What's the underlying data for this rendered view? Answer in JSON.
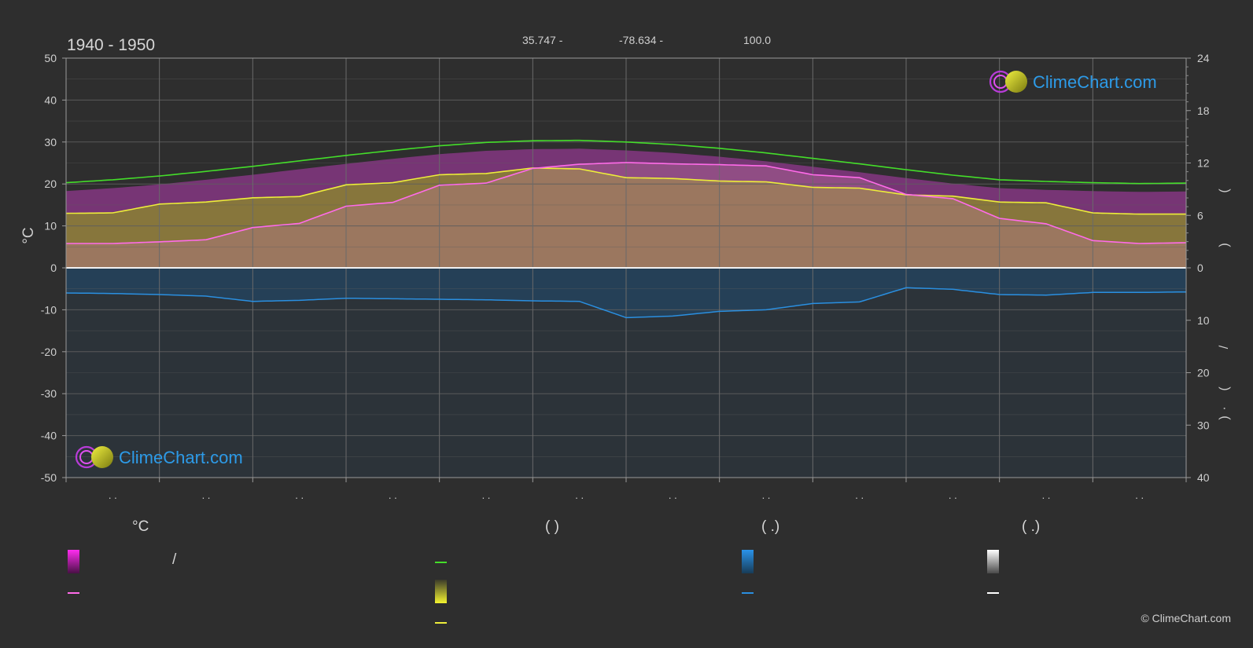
{
  "header": {
    "title": "1940 - 1950",
    "lat": "35.747 -",
    "lon": "-78.634 -",
    "elev": "100.0"
  },
  "brand": {
    "logo_text": "ClimeChart.com",
    "copyright": "© ClimeChart.com"
  },
  "colors": {
    "background": "#2e2e2e",
    "max_temp_line": "#44dd2a",
    "daylight_line": "#eded3a",
    "mean_temp_line": "#ff6be9",
    "precip_line": "#2a8fe0",
    "grid": "#5e5e5e",
    "logo_text": "#2d9be8"
  },
  "legend": {
    "col1_header": "°C",
    "col2_header": "(          )",
    "col3_header": "(   .)",
    "col4_header": "(   .)",
    "slash": "/"
  },
  "chart_data": {
    "type": "area",
    "xlabel": "",
    "ylabel": "°C",
    "ylim": [
      -50,
      50
    ],
    "y_ticks": [
      50,
      40,
      30,
      20,
      10,
      0,
      -10,
      -20,
      -30,
      -40,
      -50
    ],
    "y2_ticks_top": [
      24,
      18,
      12,
      6,
      0
    ],
    "y2_ticks_bottom": [
      10,
      20,
      30,
      40
    ],
    "y2_top_lim": [
      0,
      24
    ],
    "y2_bottom_lim": [
      0,
      40
    ],
    "y2_label_glyphs": [
      "(",
      ")",
      "/",
      "(",
      "·",
      ")"
    ],
    "month_tick_label": ". .",
    "grid": true,
    "x": [
      0,
      0.5,
      1,
      1.5,
      2,
      2.5,
      3,
      3.5,
      4,
      4.5,
      5,
      5.5,
      6,
      6.5,
      7,
      7.5,
      8,
      8.5,
      9,
      9.5,
      10,
      10.5,
      11,
      11.5,
      12
    ],
    "series": [
      {
        "key": "max_temp",
        "values": [
          20.3,
          21.0,
          21.9,
          23.0,
          24.2,
          25.5,
          26.8,
          28.0,
          29.1,
          29.9,
          30.3,
          30.4,
          30.0,
          29.4,
          28.5,
          27.4,
          26.1,
          24.8,
          23.4,
          22.1,
          21.0,
          20.6,
          20.3,
          20.1,
          20.2
        ]
      },
      {
        "key": "daylight",
        "values": [
          13.0,
          13.1,
          15.2,
          15.7,
          16.7,
          17.0,
          19.8,
          20.3,
          22.2,
          22.5,
          23.8,
          23.6,
          21.5,
          21.3,
          20.7,
          20.5,
          19.2,
          19.0,
          17.4,
          17.1,
          15.7,
          15.5,
          13.1,
          12.8,
          12.8
        ]
      },
      {
        "key": "mean_temp",
        "values": [
          5.8,
          5.8,
          6.2,
          6.7,
          9.6,
          10.6,
          14.7,
          15.6,
          19.7,
          20.2,
          23.7,
          24.7,
          25.1,
          24.8,
          24.6,
          24.3,
          22.2,
          21.5,
          17.5,
          16.5,
          11.8,
          10.5,
          6.5,
          5.8,
          6.0
        ]
      },
      {
        "key": "precip_mm",
        "values": [
          4.8,
          4.9,
          5.1,
          5.4,
          6.4,
          6.2,
          5.8,
          5.9,
          6.0,
          6.1,
          6.3,
          6.4,
          9.5,
          9.2,
          8.3,
          8.0,
          6.8,
          6.5,
          3.8,
          4.1,
          5.1,
          5.2,
          4.7,
          4.7,
          4.6
        ]
      }
    ],
    "logo_positions": [
      "top-right",
      "bottom-left"
    ]
  }
}
